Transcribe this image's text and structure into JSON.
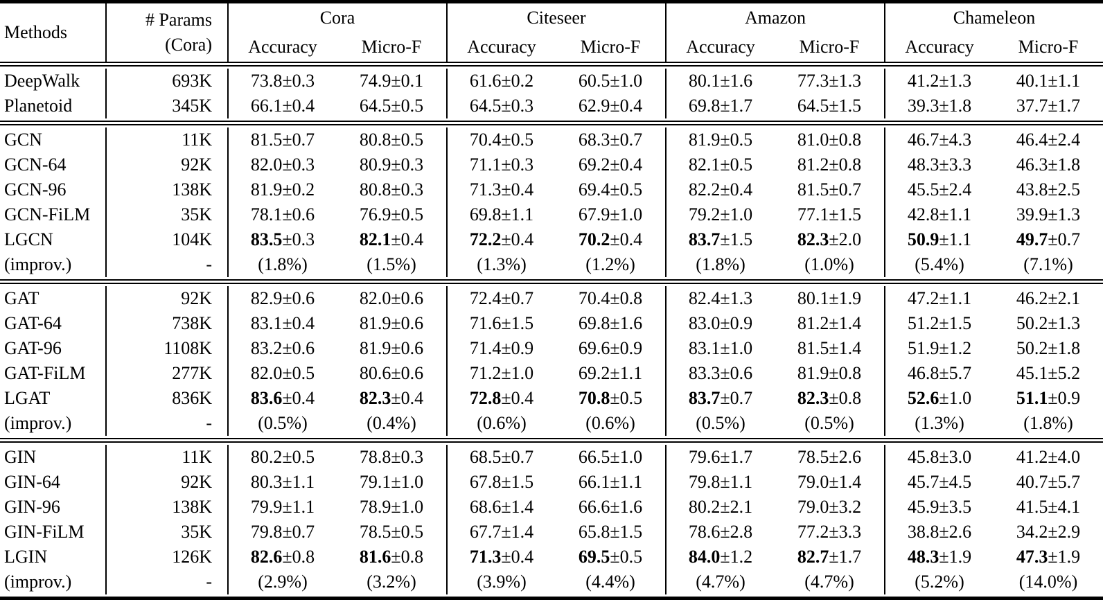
{
  "header": {
    "methods": "Methods",
    "params_line1": "# Params",
    "params_line2": "(Cora)",
    "groups": [
      {
        "name": "Cora",
        "sub": [
          "Accuracy",
          "Micro-F"
        ]
      },
      {
        "name": "Citeseer",
        "sub": [
          "Accuracy",
          "Micro-F"
        ]
      },
      {
        "name": "Amazon",
        "sub": [
          "Accuracy",
          "Micro-F"
        ]
      },
      {
        "name": "Chameleon",
        "sub": [
          "Accuracy",
          "Micro-F"
        ]
      }
    ]
  },
  "sections": [
    {
      "rows": [
        {
          "method": "DeepWalk",
          "params": "693K",
          "bold": false,
          "cells": [
            "73.8±0.3",
            "74.9±0.1",
            "61.6±0.2",
            "60.5±1.0",
            "80.1±1.6",
            "77.3±1.3",
            "41.2±1.3",
            "40.1±1.1"
          ]
        },
        {
          "method": "Planetoid",
          "params": "345K",
          "bold": false,
          "cells": [
            "66.1±0.4",
            "64.5±0.5",
            "64.5±0.3",
            "62.9±0.4",
            "69.8±1.7",
            "64.5±1.5",
            "39.3±1.8",
            "37.7±1.7"
          ]
        }
      ]
    },
    {
      "rows": [
        {
          "method": "GCN",
          "params": "11K",
          "bold": false,
          "cells": [
            "81.5±0.7",
            "80.8±0.5",
            "70.4±0.5",
            "68.3±0.7",
            "81.9±0.5",
            "81.0±0.8",
            "46.7±4.3",
            "46.4±2.4"
          ]
        },
        {
          "method": "GCN-64",
          "params": "92K",
          "bold": false,
          "cells": [
            "82.0±0.3",
            "80.9±0.3",
            "71.1±0.3",
            "69.2±0.4",
            "82.1±0.5",
            "81.2±0.8",
            "48.3±3.3",
            "46.3±1.8"
          ]
        },
        {
          "method": "GCN-96",
          "params": "138K",
          "bold": false,
          "cells": [
            "81.9±0.2",
            "80.8±0.3",
            "71.3±0.4",
            "69.4±0.5",
            "82.2±0.4",
            "81.5±0.7",
            "45.5±2.4",
            "43.8±2.5"
          ]
        },
        {
          "method": "GCN-FiLM",
          "params": "35K",
          "bold": false,
          "cells": [
            "78.1±0.6",
            "76.9±0.5",
            "69.8±1.1",
            "67.9±1.0",
            "79.2±1.0",
            "77.1±1.5",
            "42.8±1.1",
            "39.9±1.3"
          ]
        },
        {
          "method": "LGCN",
          "params": "104K",
          "bold": true,
          "cells": [
            "83.5±0.3",
            "82.1±0.4",
            "72.2±0.4",
            "70.2±0.4",
            "83.7±1.5",
            "82.3±2.0",
            "50.9±1.1",
            "49.7±0.7"
          ]
        },
        {
          "method": "(improv.)",
          "params": "-",
          "bold": false,
          "cells": [
            "(1.8%)",
            "(1.5%)",
            "(1.3%)",
            "(1.2%)",
            "(1.8%)",
            "(1.0%)",
            "(5.4%)",
            "(7.1%)"
          ]
        }
      ]
    },
    {
      "rows": [
        {
          "method": "GAT",
          "params": "92K",
          "bold": false,
          "cells": [
            "82.9±0.6",
            "82.0±0.6",
            "72.4±0.7",
            "70.4±0.8",
            "82.4±1.3",
            "80.1±1.9",
            "47.2±1.1",
            "46.2±2.1"
          ]
        },
        {
          "method": "GAT-64",
          "params": "738K",
          "bold": false,
          "cells": [
            "83.1±0.4",
            "81.9±0.6",
            "71.6±1.5",
            "69.8±1.6",
            "83.0±0.9",
            "81.2±1.4",
            "51.2±1.5",
            "50.2±1.3"
          ]
        },
        {
          "method": "GAT-96",
          "params": "1108K",
          "bold": false,
          "cells": [
            "83.2±0.6",
            "81.9±0.6",
            "71.4±0.9",
            "69.6±0.9",
            "83.1±1.0",
            "81.5±1.4",
            "51.9±1.2",
            "50.2±1.8"
          ]
        },
        {
          "method": "GAT-FiLM",
          "params": "277K",
          "bold": false,
          "cells": [
            "82.0±0.5",
            "80.6±0.6",
            "71.2±1.0",
            "69.2±1.1",
            "83.3±0.6",
            "81.9±0.8",
            "46.8±5.7",
            "45.1±5.2"
          ]
        },
        {
          "method": "LGAT",
          "params": "836K",
          "bold": true,
          "cells": [
            "83.6±0.4",
            "82.3±0.4",
            "72.8±0.4",
            "70.8±0.5",
            "83.7±0.7",
            "82.3±0.8",
            "52.6±1.0",
            "51.1±0.9"
          ]
        },
        {
          "method": "(improv.)",
          "params": "-",
          "bold": false,
          "cells": [
            "(0.5%)",
            "(0.4%)",
            "(0.6%)",
            "(0.6%)",
            "(0.5%)",
            "(0.5%)",
            "(1.3%)",
            "(1.8%)"
          ]
        }
      ]
    },
    {
      "rows": [
        {
          "method": "GIN",
          "params": "11K",
          "bold": false,
          "cells": [
            "80.2±0.5",
            "78.8±0.3",
            "68.5±0.7",
            "66.5±1.0",
            "79.6±1.7",
            "78.5±2.6",
            "45.8±3.0",
            "41.2±4.0"
          ]
        },
        {
          "method": "GIN-64",
          "params": "92K",
          "bold": false,
          "cells": [
            "80.3±1.1",
            "79.1±1.0",
            "67.8±1.5",
            "66.1±1.1",
            "79.8±1.1",
            "79.0±1.4",
            "45.7±4.5",
            "40.7±5.7"
          ]
        },
        {
          "method": "GIN-96",
          "params": "138K",
          "bold": false,
          "cells": [
            "79.9±1.1",
            "78.9±1.0",
            "68.6±1.4",
            "66.6±1.6",
            "80.2±2.1",
            "79.0±3.2",
            "45.9±3.5",
            "41.5±4.1"
          ]
        },
        {
          "method": "GIN-FiLM",
          "params": "35K",
          "bold": false,
          "cells": [
            "79.8±0.7",
            "78.5±0.5",
            "67.7±1.4",
            "65.8±1.5",
            "78.6±2.8",
            "77.2±3.3",
            "38.8±2.6",
            "34.2±2.9"
          ]
        },
        {
          "method": "LGIN",
          "params": "126K",
          "bold": true,
          "cells": [
            "82.6±0.8",
            "81.6±0.8",
            "71.3±0.4",
            "69.5±0.5",
            "84.0±1.2",
            "82.7±1.7",
            "48.3±1.9",
            "47.3±1.9"
          ]
        },
        {
          "method": "(improv.)",
          "params": "-",
          "bold": false,
          "cells": [
            "(2.9%)",
            "(3.2%)",
            "(3.9%)",
            "(4.4%)",
            "(4.7%)",
            "(4.7%)",
            "(5.2%)",
            "(14.0%)"
          ]
        }
      ]
    }
  ]
}
